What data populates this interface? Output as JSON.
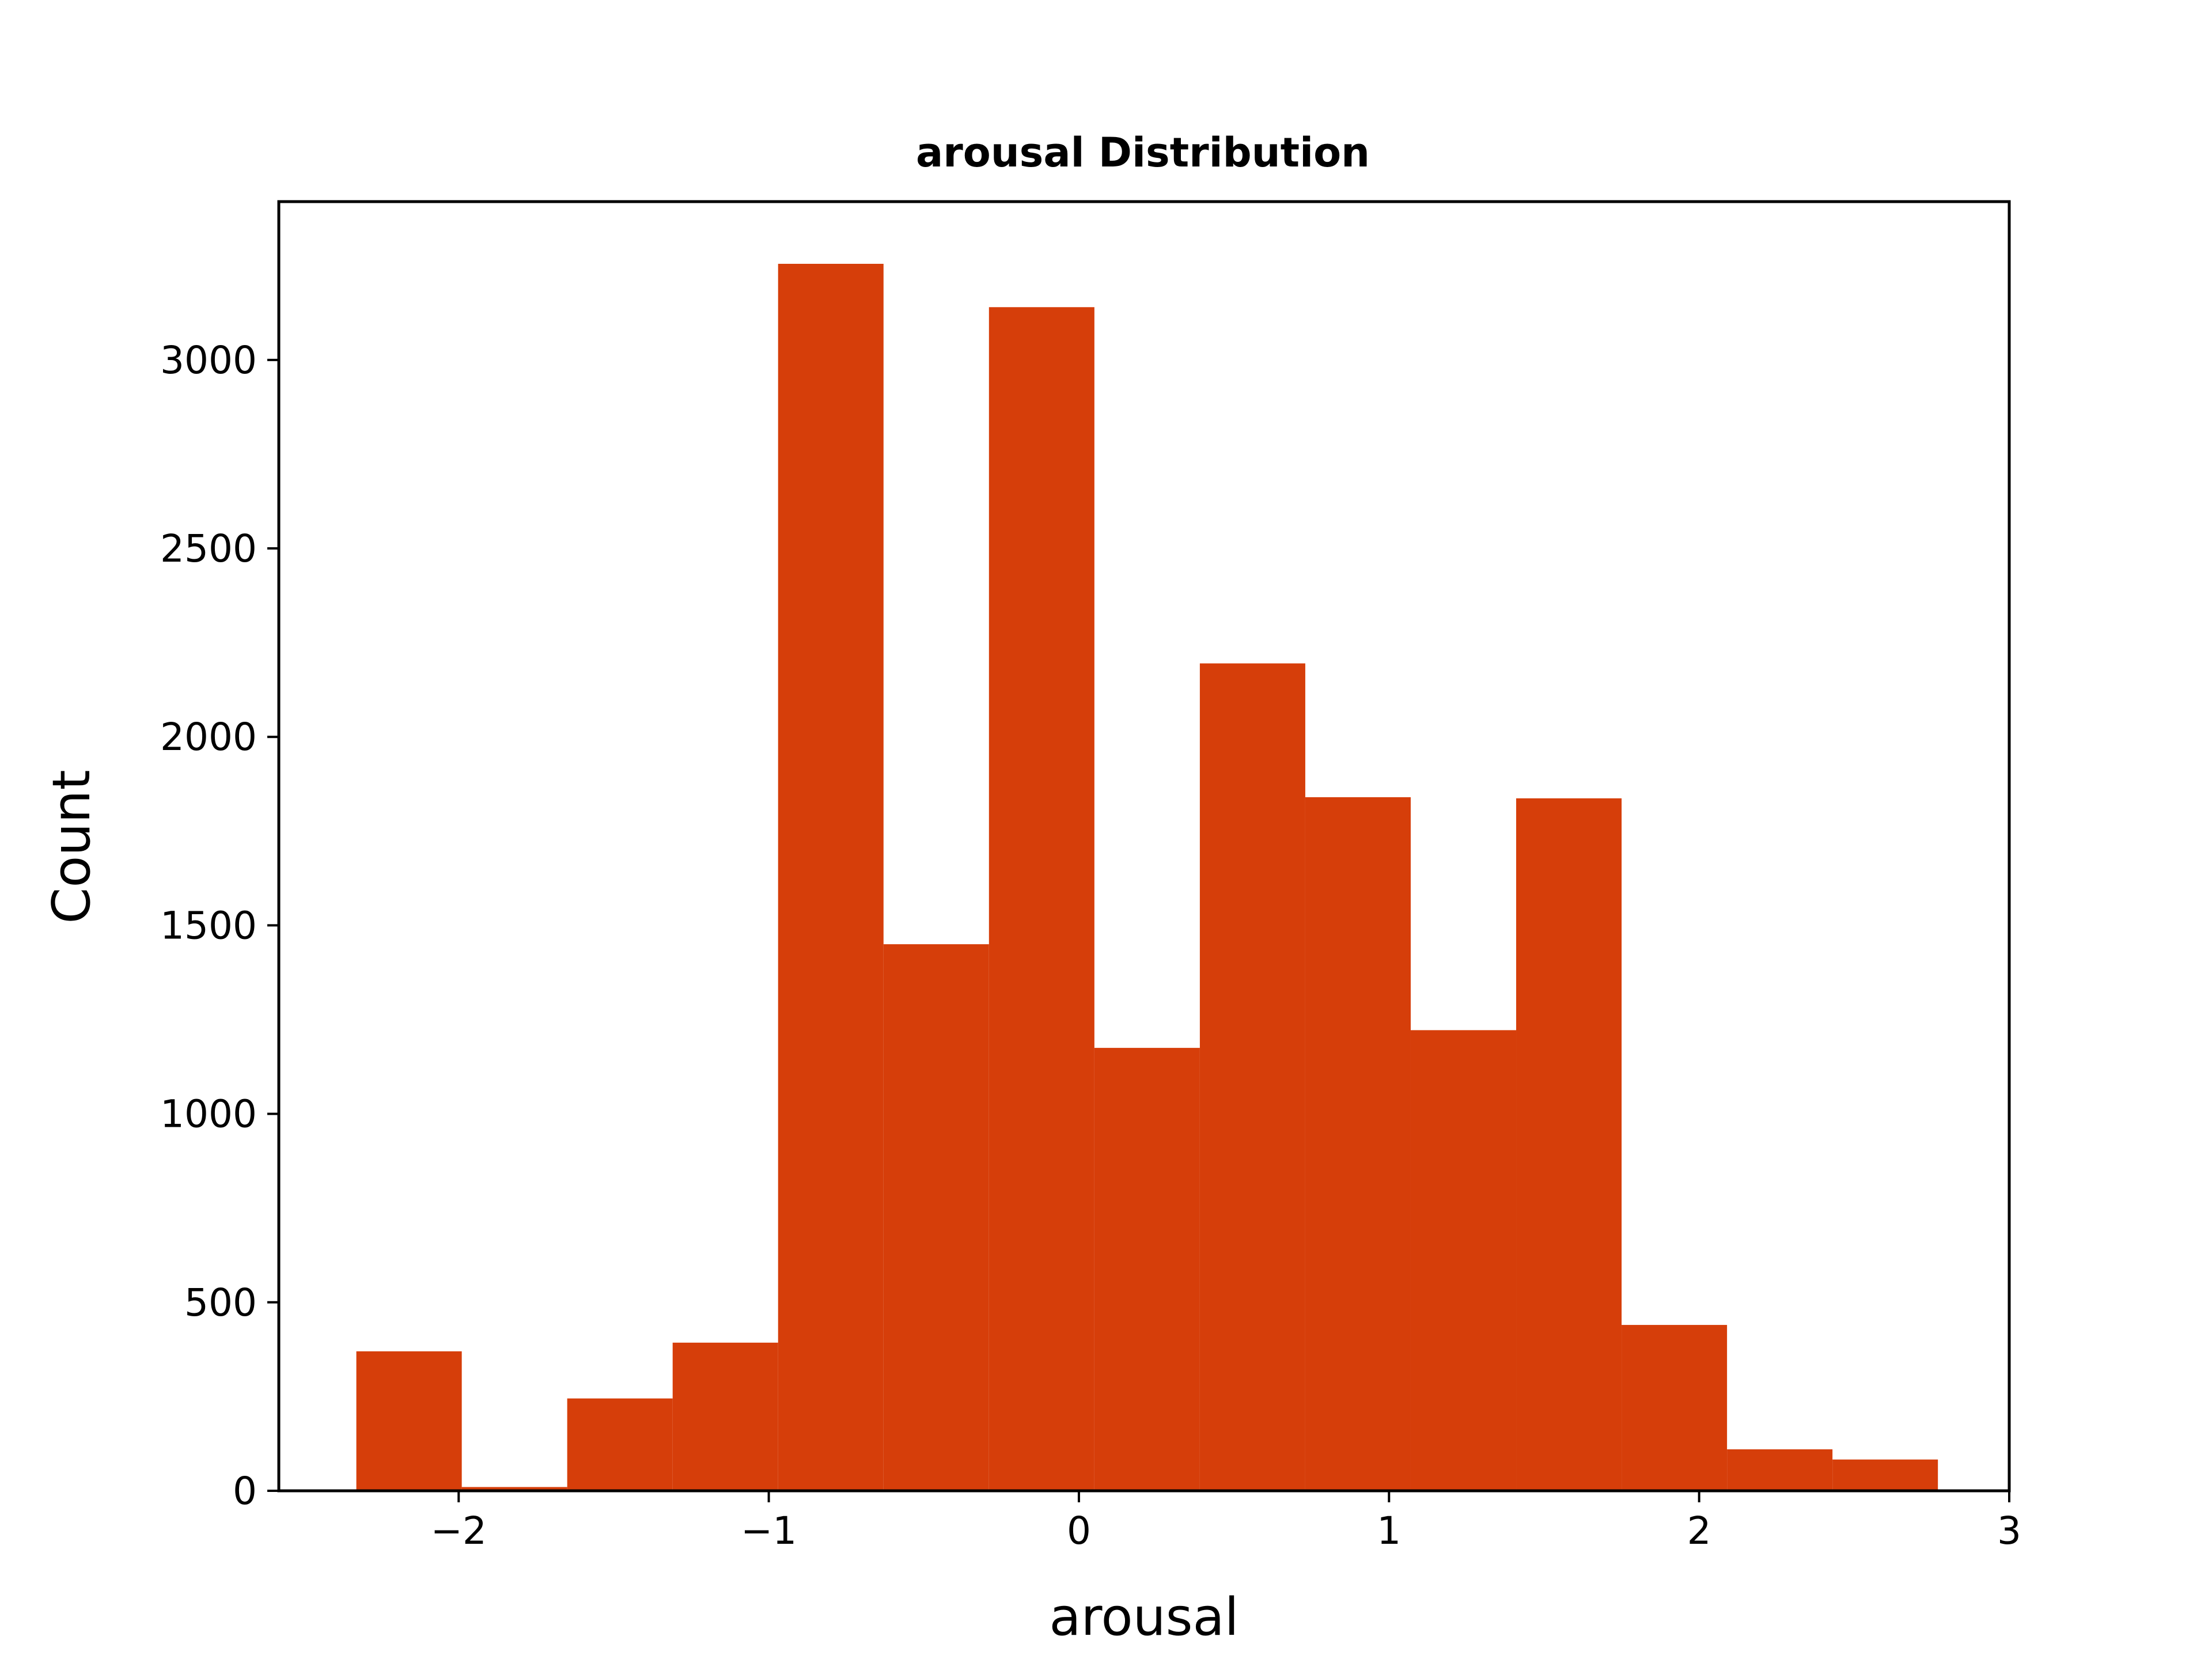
{
  "chart_data": {
    "type": "bar",
    "title": "arousal Distribution",
    "xlabel": "arousal",
    "ylabel": "Count",
    "bar_color": "#d63e0a",
    "xlim": [
      -2.58,
      3.0
    ],
    "ylim": [
      0,
      3420
    ],
    "xticks": [
      -2,
      -1,
      0,
      1,
      2,
      3
    ],
    "xtick_labels": [
      "−2",
      "−1",
      "0",
      "1",
      "2",
      "3"
    ],
    "yticks": [
      0,
      500,
      1000,
      1500,
      2000,
      2500,
      3000
    ],
    "ytick_labels": [
      "0",
      "500",
      "1000",
      "1500",
      "2000",
      "2500",
      "3000"
    ],
    "grid": false,
    "bins": [
      {
        "x0": -2.33,
        "x1": -1.99,
        "count": 370
      },
      {
        "x0": -1.99,
        "x1": -1.65,
        "count": 10
      },
      {
        "x0": -1.65,
        "x1": -1.31,
        "count": 245
      },
      {
        "x0": -1.31,
        "x1": -0.97,
        "count": 393
      },
      {
        "x0": -0.97,
        "x1": -0.63,
        "count": 3255
      },
      {
        "x0": -0.63,
        "x1": -0.29,
        "count": 1450
      },
      {
        "x0": -0.29,
        "x1": 0.05,
        "count": 3140
      },
      {
        "x0": 0.05,
        "x1": 0.39,
        "count": 1175
      },
      {
        "x0": 0.39,
        "x1": 0.73,
        "count": 2195
      },
      {
        "x0": 0.73,
        "x1": 1.07,
        "count": 1840
      },
      {
        "x0": 1.07,
        "x1": 1.41,
        "count": 1222
      },
      {
        "x0": 1.41,
        "x1": 1.75,
        "count": 1837
      },
      {
        "x0": 1.75,
        "x1": 2.09,
        "count": 440
      },
      {
        "x0": 2.09,
        "x1": 2.43,
        "count": 110
      },
      {
        "x0": 2.43,
        "x1": 2.77,
        "count": 83
      }
    ]
  }
}
